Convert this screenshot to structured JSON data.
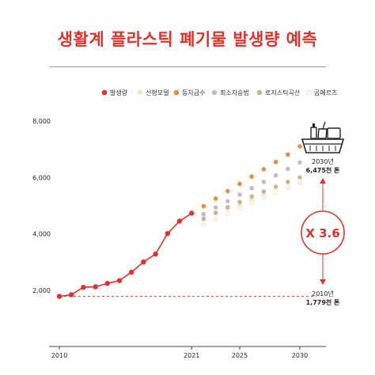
{
  "title": "생활계 플라스틱 폐기물 발생량 예측",
  "colors": {
    "accent": "#e0312a",
    "generation": "#e0312a",
    "linear": "#f3e9b8",
    "equal_growth": "#ef8a3c",
    "least_squares": "#bebbd8",
    "logistic": "#cbb48a",
    "gompertz": "#fbf6ea"
  },
  "chart_data": {
    "type": "line",
    "title": "생활계 플라스틱 폐기물 발생량 예측",
    "xlim": [
      2010,
      2031
    ],
    "ylim": [
      0,
      8000
    ],
    "x_ticks": [
      "2010",
      "2021",
      "2025",
      "2030"
    ],
    "y_ticks": [
      "2,000",
      "4,000",
      "6,000",
      "8,000"
    ],
    "grid": false,
    "legend_position": "top",
    "series": [
      {
        "name": "발생량",
        "color": "#e0312a",
        "style": "line",
        "x": [
          2010,
          2011,
          2012,
          2013,
          2014,
          2015,
          2016,
          2017,
          2018,
          2019,
          2020,
          2021
        ],
        "values": [
          1779,
          1840,
          2100,
          2120,
          2240,
          2340,
          2640,
          3000,
          3280,
          4010,
          4450,
          4730
        ]
      },
      {
        "name": "선형모델",
        "color": "#f3e9b8",
        "style": "dots",
        "x": [
          2022,
          2023,
          2024,
          2025,
          2026,
          2027,
          2028,
          2029,
          2030
        ],
        "values": [
          4600,
          4760,
          4900,
          5050,
          5200,
          5350,
          5500,
          5650,
          5800
        ]
      },
      {
        "name": "등차급수",
        "color": "#ef8a3c",
        "style": "dots",
        "x": [
          2022,
          2023,
          2024,
          2025,
          2026,
          2027,
          2028,
          2029,
          2030
        ],
        "values": [
          4980,
          5250,
          5510,
          5770,
          6030,
          6290,
          6550,
          6810,
          7100
        ]
      },
      {
        "name": "최소자승법",
        "color": "#bebbd8",
        "style": "dots",
        "x": [
          2022,
          2023,
          2024,
          2025,
          2026,
          2027,
          2028,
          2029,
          2030
        ],
        "values": [
          4700,
          4930,
          5160,
          5390,
          5620,
          5840,
          6070,
          6300,
          6530
        ]
      },
      {
        "name": "로지스틱곡선",
        "color": "#cbb48a",
        "style": "dots",
        "x": [
          2022,
          2023,
          2024,
          2025,
          2026,
          2027,
          2028,
          2029,
          2030
        ],
        "values": [
          4530,
          4740,
          4940,
          5130,
          5320,
          5500,
          5670,
          5840,
          6000
        ]
      },
      {
        "name": "곰페르츠",
        "color": "#fbf6ea",
        "style": "dots",
        "x": [
          2022,
          2023,
          2024,
          2025,
          2026,
          2027,
          2028,
          2029,
          2030
        ],
        "values": [
          4330,
          4520,
          4720,
          4910,
          5100,
          5290,
          5480,
          5670,
          5860
        ]
      }
    ],
    "baseline": {
      "value": 1779,
      "style": "dashed",
      "color": "#e0312a"
    },
    "annotations": {
      "top_year": "2030년",
      "top_value": "6,475천 톤",
      "bottom_year": "2010년",
      "bottom_value": "1,779천 톤",
      "factor": "X 3.6"
    }
  },
  "icons": [
    "trash-basket-icon"
  ]
}
